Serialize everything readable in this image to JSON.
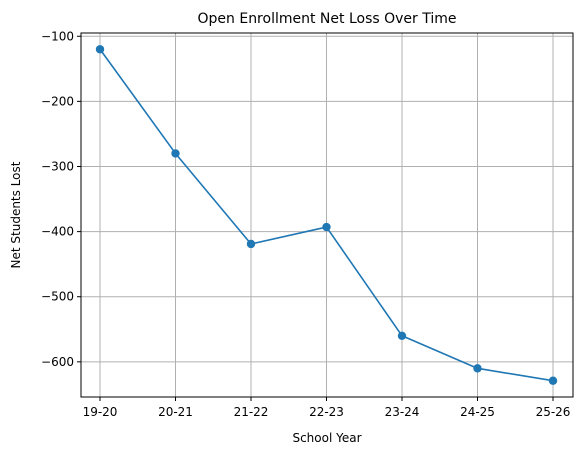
{
  "chart_data": {
    "type": "line",
    "title": "Open Enrollment Net Loss Over Time",
    "xlabel": "School Year",
    "ylabel": "Net Students Lost",
    "categories": [
      "19-20",
      "20-21",
      "21-22",
      "22-23",
      "23-24",
      "24-25",
      "25-26"
    ],
    "series": [
      {
        "values": [
          -120,
          -280,
          -419,
          -393,
          -560,
          -610,
          -629
        ],
        "color": "#1f77b4",
        "marker": "circle"
      }
    ],
    "ylim": [
      -654,
      -95
    ],
    "yticks": [
      -100,
      -200,
      -300,
      -400,
      -500,
      -600
    ],
    "ytick_labels": [
      "−100",
      "−200",
      "−300",
      "−400",
      "−500",
      "−600"
    ],
    "grid": true,
    "grid_color": "#b0b0b0"
  }
}
